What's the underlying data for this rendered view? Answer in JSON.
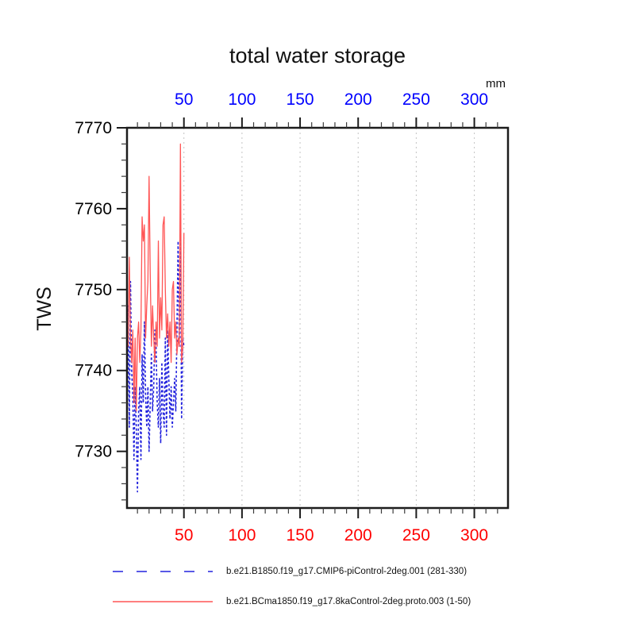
{
  "chart_data": {
    "type": "line",
    "title": "total water storage",
    "ylabel": "TWS",
    "top_axis_unit": "mm",
    "xlim": [
      1,
      329
    ],
    "ylim": [
      7723,
      7770
    ],
    "x_major_ticks": [
      50,
      100,
      150,
      200,
      250,
      300
    ],
    "x_minor_step": 10,
    "y_major_ticks": [
      7730,
      7740,
      7750,
      7760,
      7770
    ],
    "y_minor_step": 2,
    "grid": {
      "vertical_at_major_x": true,
      "style": "dashed",
      "color": "#c4c4c4"
    },
    "axis_colors": {
      "top_labels": "#0000ff",
      "bottom_labels": "#ff0000",
      "left_labels": "#000000",
      "frame": "#1c1c1c"
    },
    "legend_position": "bottom",
    "x": [
      1,
      2,
      3,
      4,
      5,
      6,
      7,
      8,
      9,
      10,
      11,
      12,
      13,
      14,
      15,
      16,
      17,
      18,
      19,
      20,
      21,
      22,
      23,
      24,
      25,
      26,
      27,
      28,
      29,
      30,
      31,
      32,
      33,
      34,
      35,
      36,
      37,
      38,
      39,
      40,
      41,
      42,
      43,
      44,
      45,
      46,
      47,
      48,
      49,
      50
    ],
    "series": [
      {
        "name": "b.e21.B1850.f19_g17.CMIP6-piControl-2deg.001 (281-330)",
        "color": "#2222dd",
        "line_style": "dashed",
        "values": [
          7732,
          7748,
          7733,
          7751,
          7740,
          7737,
          7729,
          7738,
          7733,
          7725,
          7735,
          7738,
          7729,
          7742,
          7736,
          7746,
          7737,
          7733,
          7738,
          7730,
          7736,
          7742,
          7735,
          7738,
          7745,
          7743,
          7736,
          7733,
          7739,
          7731,
          7741,
          7735,
          7733,
          7744,
          7732,
          7745,
          7739,
          7734,
          7738,
          7733,
          7736,
          7739,
          7735,
          7745,
          7756,
          7743,
          7757,
          7734,
          7744,
          7743
        ]
      },
      {
        "name": "b.e21.BCma1850.f19_g17.8kaControl-2deg.proto.003 (1-50)",
        "color": "#ff5555",
        "line_style": "solid",
        "values": [
          7745,
          7743,
          7754,
          7744,
          7741,
          7745,
          7736,
          7744,
          7735,
          7744,
          7746,
          7741,
          7745,
          7759,
          7756,
          7758,
          7744,
          7748,
          7751,
          7764,
          7752,
          7743,
          7748,
          7744,
          7741,
          7746,
          7743,
          7756,
          7744,
          7749,
          7745,
          7758,
          7759,
          7750,
          7744,
          7747,
          7743,
          7746,
          7741,
          7750,
          7751,
          7744,
          7746,
          7742,
          7744,
          7743,
          7768,
          7741,
          7743,
          7757
        ]
      }
    ]
  }
}
